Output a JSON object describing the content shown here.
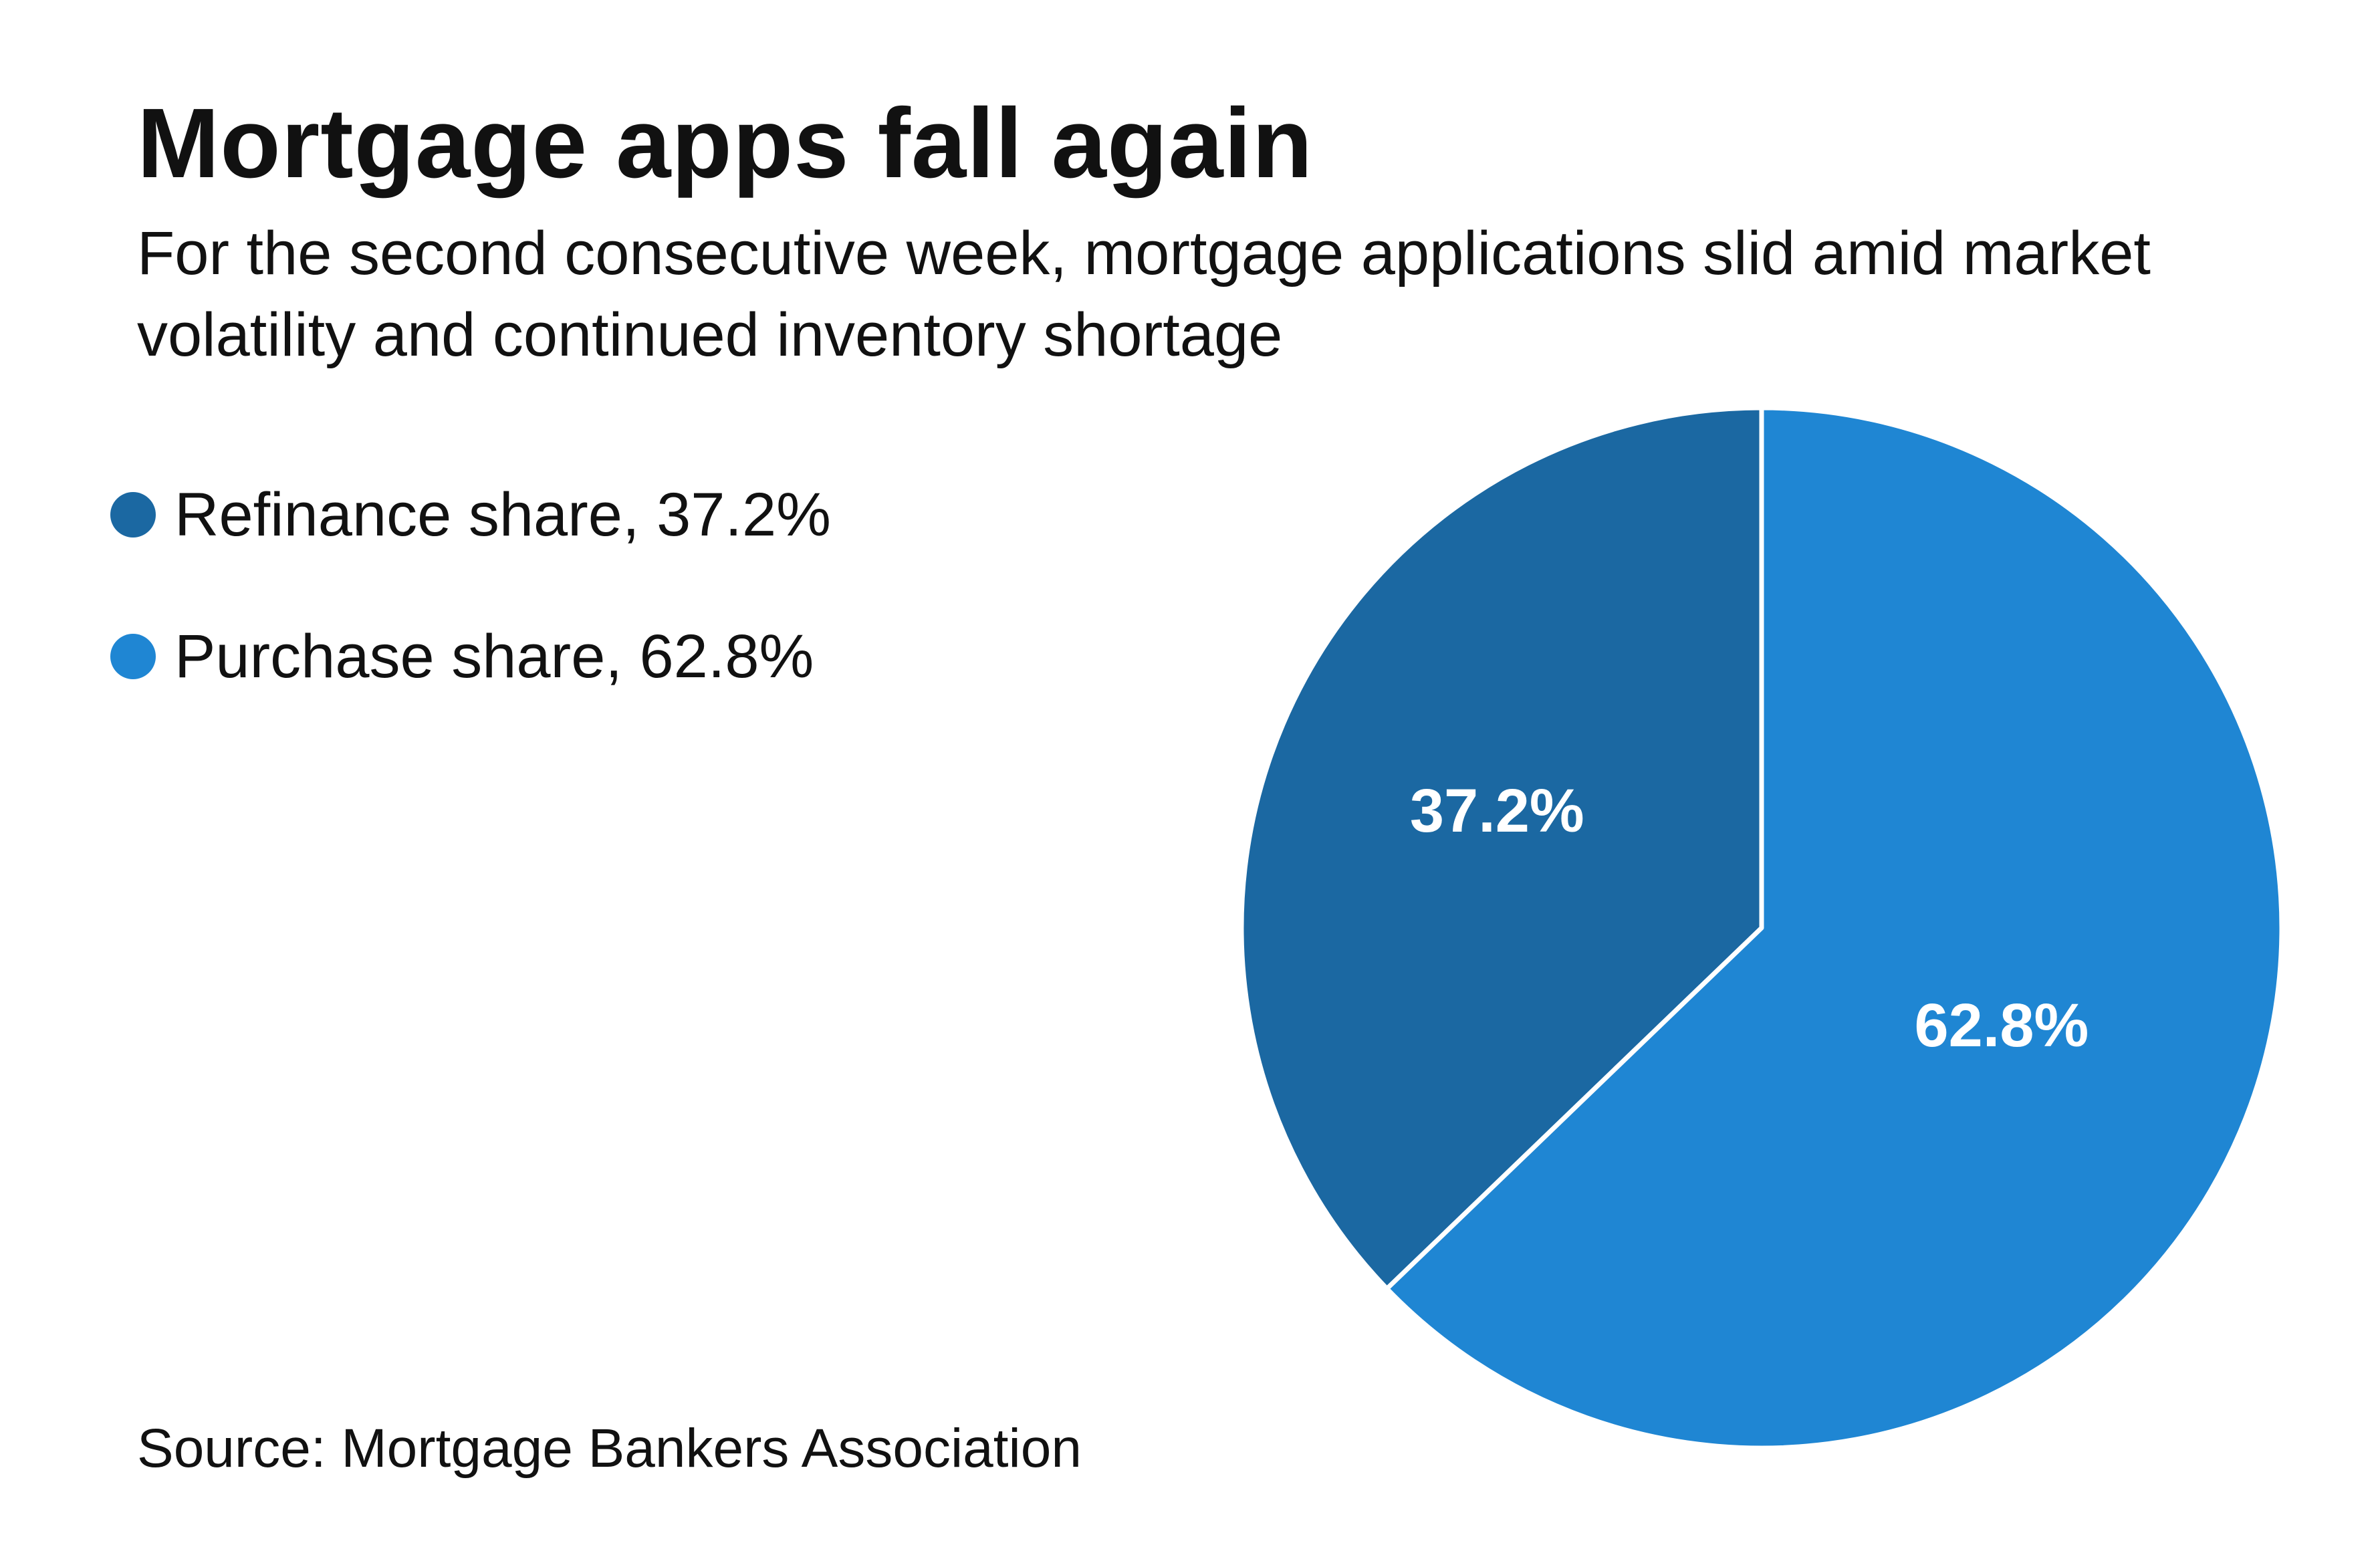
{
  "title": "Mortgage apps fall again",
  "subtitle": "For the second consecutive week, mortgage applications slid amid market volatility and continued inventory shortage",
  "source": "Source: Mortgage Bankers Association",
  "legend": [
    {
      "label": "Refinance share, 37.2%",
      "color": "#1b68a2"
    },
    {
      "label": "Purchase share, 62.8%",
      "color": "#1f86d3"
    }
  ],
  "chart_data": {
    "type": "pie",
    "slices": [
      {
        "name": "Refinance share",
        "value": 37.2,
        "label": "37.2%",
        "color": "#1b68a2"
      },
      {
        "name": "Purchase share",
        "value": 62.8,
        "label": "62.8%",
        "color": "#1f86d3"
      }
    ],
    "legend_position": "left"
  }
}
